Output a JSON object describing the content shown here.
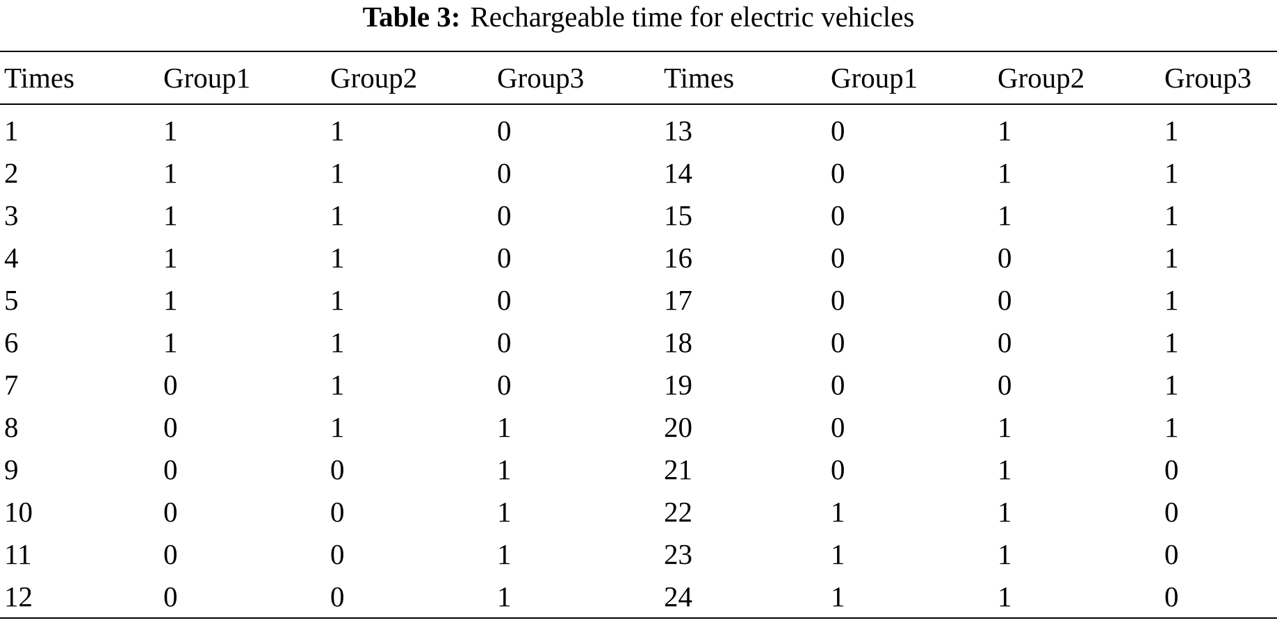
{
  "table": {
    "caption_label": "Table 3:",
    "caption_text": "Rechargeable time for electric vehicles",
    "headers": [
      "Times",
      "Group1",
      "Group2",
      "Group3",
      "Times",
      "Group1",
      "Group2",
      "Group3"
    ],
    "rows": [
      [
        "1",
        "1",
        "1",
        "0",
        "13",
        "0",
        "1",
        "1"
      ],
      [
        "2",
        "1",
        "1",
        "0",
        "14",
        "0",
        "1",
        "1"
      ],
      [
        "3",
        "1",
        "1",
        "0",
        "15",
        "0",
        "1",
        "1"
      ],
      [
        "4",
        "1",
        "1",
        "0",
        "16",
        "0",
        "0",
        "1"
      ],
      [
        "5",
        "1",
        "1",
        "0",
        "17",
        "0",
        "0",
        "1"
      ],
      [
        "6",
        "1",
        "1",
        "0",
        "18",
        "0",
        "0",
        "1"
      ],
      [
        "7",
        "0",
        "1",
        "0",
        "19",
        "0",
        "0",
        "1"
      ],
      [
        "8",
        "0",
        "1",
        "1",
        "20",
        "0",
        "1",
        "1"
      ],
      [
        "9",
        "0",
        "0",
        "1",
        "21",
        "0",
        "1",
        "0"
      ],
      [
        "10",
        "0",
        "0",
        "1",
        "22",
        "1",
        "1",
        "0"
      ],
      [
        "11",
        "0",
        "0",
        "1",
        "23",
        "1",
        "1",
        "0"
      ],
      [
        "12",
        "0",
        "0",
        "1",
        "24",
        "1",
        "1",
        "0"
      ]
    ]
  }
}
